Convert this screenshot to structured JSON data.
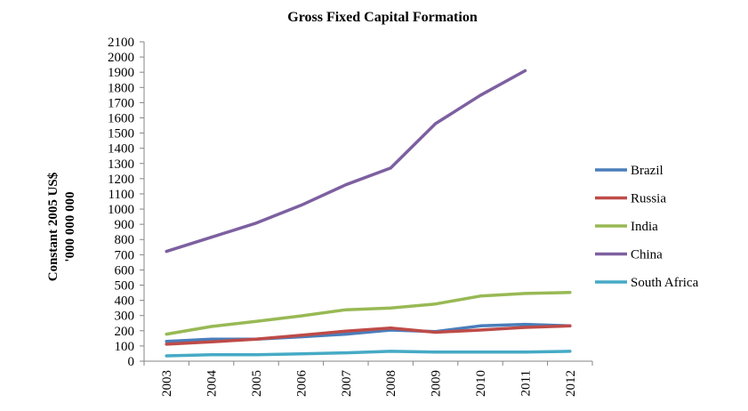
{
  "chart_data": {
    "type": "line",
    "title": "Gross Fixed Capital Formation",
    "ylabel_line1": "Constant 2005 US$",
    "ylabel_line2": "'000 000 000",
    "xlabel": "",
    "categories": [
      "2003",
      "2004",
      "2005",
      "2006",
      "2007",
      "2008",
      "2009",
      "2010",
      "2011",
      "2012"
    ],
    "ylim": [
      0,
      2100
    ],
    "ytick_step": 100,
    "grid": false,
    "legend_position": "right",
    "series": [
      {
        "name": "Brazil",
        "color": "#4a7ebb",
        "values": [
          130,
          145,
          145,
          160,
          178,
          205,
          195,
          232,
          242,
          232
        ]
      },
      {
        "name": "Russia",
        "color": "#be4b48",
        "values": [
          112,
          127,
          145,
          170,
          198,
          218,
          190,
          205,
          222,
          232
        ]
      },
      {
        "name": "India",
        "color": "#98b954",
        "values": [
          178,
          228,
          262,
          298,
          338,
          350,
          376,
          428,
          445,
          452
        ]
      },
      {
        "name": "China",
        "color": "#7d60a0",
        "values": [
          722,
          815,
          908,
          1025,
          1160,
          1270,
          1562,
          1748,
          1910,
          null
        ]
      },
      {
        "name": "South Africa",
        "color": "#46aac5",
        "values": [
          35,
          42,
          42,
          48,
          55,
          65,
          60,
          60,
          60,
          65
        ]
      }
    ]
  }
}
